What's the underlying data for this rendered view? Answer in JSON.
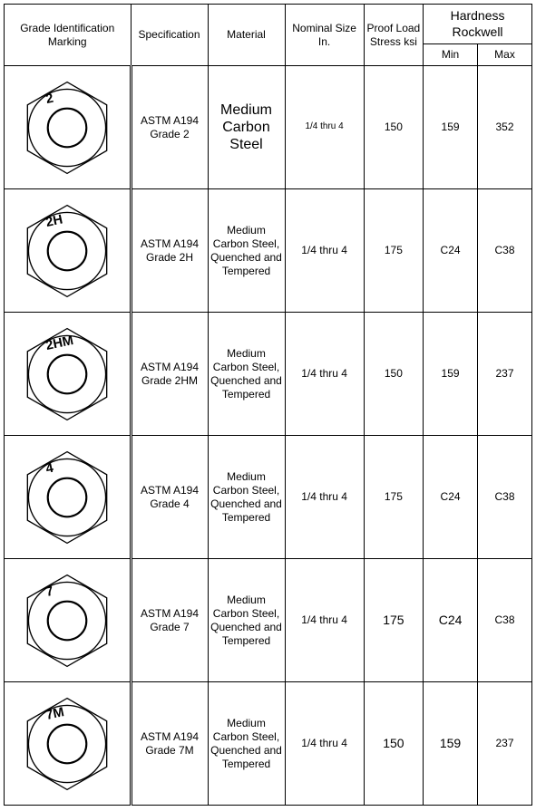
{
  "headers": {
    "marking": "Grade Identification Marking",
    "spec": "Specification",
    "material": "Material",
    "size": "Nominal Size In.",
    "proof": "Proof Load Stress ksi",
    "hardness": "Hardness Rockwell",
    "min": "Min",
    "max": "Max"
  },
  "table_style": {
    "border_color": "#000000",
    "background": "#ffffff",
    "font_family": "Arial",
    "header_fontsize": 12,
    "cell_fontsize": 12,
    "nut_stroke": "#000000",
    "nut_stroke_width": 1.2,
    "double_border_width": 3
  },
  "rows": [
    {
      "mark": "2",
      "spec": "ASTM A194 Grade 2",
      "material": "Medium Carbon Steel",
      "material_big": true,
      "size": "1/4 thru 4",
      "size_small": true,
      "proof": "150",
      "min": "159",
      "max": "352"
    },
    {
      "mark": "2H",
      "spec": "ASTM A194 Grade 2H",
      "material": "Medium Carbon Steel, Quenched and Tempered",
      "size": "1/4 thru 4",
      "proof": "175",
      "min": "C24",
      "max": "C38"
    },
    {
      "mark": "2HM",
      "spec": "ASTM A194 Grade 2HM",
      "material": "Medium Carbon Steel, Quenched and Tempered",
      "size": "1/4 thru 4",
      "proof": "150",
      "min": "159",
      "max": "237"
    },
    {
      "mark": "4",
      "spec": "ASTM A194 Grade 4",
      "material": "Medium Carbon Steel, Quenched and Tempered",
      "size": "1/4 thru 4",
      "proof": "175",
      "min": "C24",
      "max": "C38"
    },
    {
      "mark": "7",
      "spec": "ASTM A194 Grade 7",
      "material": "Medium Carbon Steel, Quenched and Tempered",
      "size": "1/4 thru 4",
      "proof": "175",
      "proof_big": true,
      "min": "C24",
      "min_big": true,
      "max": "C38"
    },
    {
      "mark": "7M",
      "spec": "ASTM A194 Grade 7M",
      "material": "Medium Carbon Steel, Quenched and Tempered",
      "size": "1/4 thru 4",
      "proof": "150",
      "proof_big": true,
      "min": "159",
      "min_big": true,
      "max": "237"
    }
  ]
}
